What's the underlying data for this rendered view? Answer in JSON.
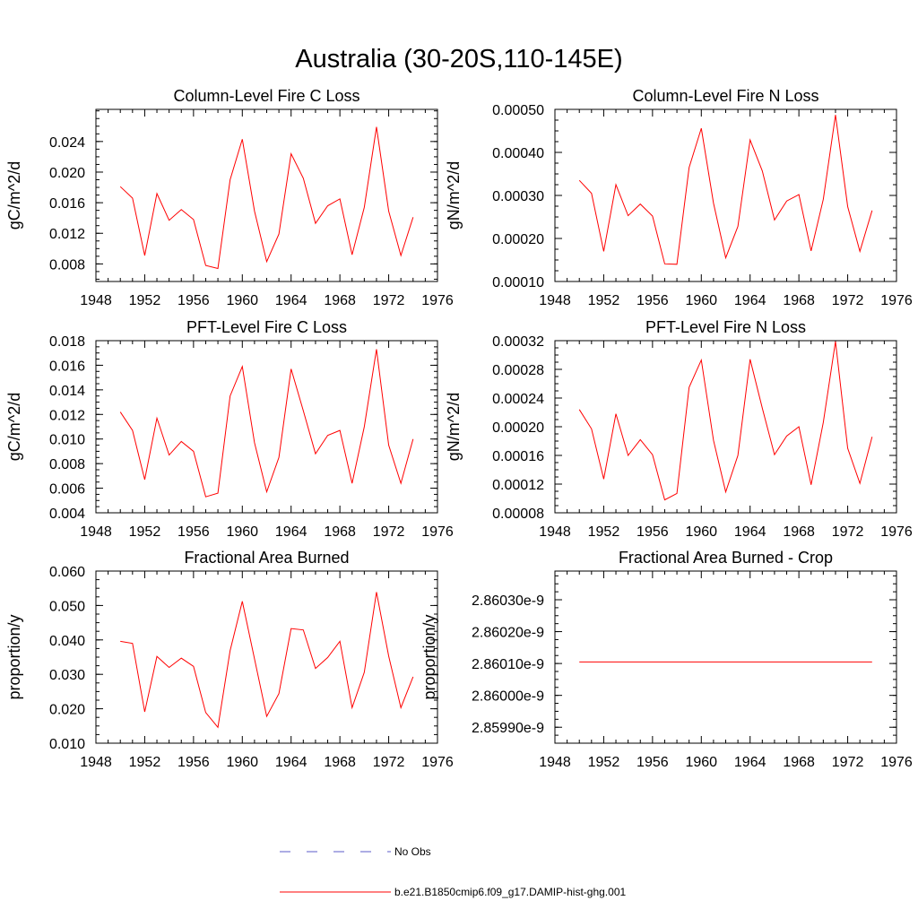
{
  "figure": {
    "title": "Australia (30-20S,110-145E)"
  },
  "legend": [
    {
      "label": "No Obs",
      "color": "#5b5bc8",
      "style": "dashed"
    },
    {
      "label": "b.e21.B1850cmip6.f09_g17.DAMIP-hist-ghg.001",
      "color": "#ff0000",
      "style": "solid"
    }
  ],
  "chart_data": [
    {
      "type": "line",
      "title": "Column-Level Fire C Loss",
      "ylabel": "gC/m^2/d",
      "xlim": [
        1948,
        1976
      ],
      "ylim": [
        0.0057,
        0.0282
      ],
      "xticks": [
        1948,
        1952,
        1956,
        1960,
        1964,
        1968,
        1972,
        1976
      ],
      "xtick_labels": [
        "1948",
        "1952",
        "1956",
        "1960",
        "1964",
        "1968",
        "1972",
        "1976"
      ],
      "yticks": [
        0.008,
        0.012,
        0.016,
        0.02,
        0.024
      ],
      "ytick_labels": [
        "0.008",
        "0.012",
        "0.016",
        "0.020",
        "0.024"
      ],
      "series": [
        {
          "color": "#ff0000",
          "x": [
            1950,
            1951,
            1952,
            1953,
            1954,
            1955,
            1956,
            1957,
            1958,
            1959,
            1960,
            1961,
            1962,
            1963,
            1964,
            1965,
            1966,
            1967,
            1968,
            1969,
            1970,
            1971,
            1972,
            1973,
            1974
          ],
          "values": [
            0.0181,
            0.0166,
            0.0091,
            0.0172,
            0.0137,
            0.0151,
            0.0138,
            0.0078,
            0.0074,
            0.019,
            0.0243,
            0.0149,
            0.0083,
            0.0119,
            0.0224,
            0.0192,
            0.0133,
            0.0156,
            0.0165,
            0.0092,
            0.0154,
            0.0259,
            0.0149,
            0.0091,
            0.0141
          ]
        }
      ]
    },
    {
      "type": "line",
      "title": "Column-Level Fire N Loss",
      "ylabel": "gN/m^2/d",
      "xlim": [
        1948,
        1976
      ],
      "ylim": [
        0.0001,
        0.0005
      ],
      "xticks": [
        1948,
        1952,
        1956,
        1960,
        1964,
        1968,
        1972,
        1976
      ],
      "xtick_labels": [
        "1948",
        "1952",
        "1956",
        "1960",
        "1964",
        "1968",
        "1972",
        "1976"
      ],
      "yticks": [
        0.0001,
        0.0002,
        0.0003,
        0.0004,
        0.0005
      ],
      "ytick_labels": [
        "0.00010",
        "0.00020",
        "0.00030",
        "0.00040",
        "0.00050"
      ],
      "series": [
        {
          "color": "#ff0000",
          "x": [
            1950,
            1951,
            1952,
            1953,
            1954,
            1955,
            1956,
            1957,
            1958,
            1959,
            1960,
            1961,
            1962,
            1963,
            1964,
            1965,
            1966,
            1967,
            1968,
            1969,
            1970,
            1971,
            1972,
            1973,
            1974
          ],
          "values": [
            0.000335,
            0.000305,
            0.00017,
            0.000325,
            0.000253,
            0.00028,
            0.000252,
            0.000141,
            0.00014,
            0.000365,
            0.000456,
            0.000282,
            0.000155,
            0.000228,
            0.000429,
            0.000357,
            0.000243,
            0.000287,
            0.000302,
            0.000171,
            0.000291,
            0.000487,
            0.000274,
            0.00017,
            0.000265
          ]
        }
      ]
    },
    {
      "type": "line",
      "title": "PFT-Level Fire C Loss",
      "ylabel": "gC/m^2/d",
      "xlim": [
        1948,
        1976
      ],
      "ylim": [
        0.004,
        0.018
      ],
      "xticks": [
        1948,
        1952,
        1956,
        1960,
        1964,
        1968,
        1972,
        1976
      ],
      "xtick_labels": [
        "1948",
        "1952",
        "1956",
        "1960",
        "1964",
        "1968",
        "1972",
        "1976"
      ],
      "yticks": [
        0.004,
        0.006,
        0.008,
        0.01,
        0.012,
        0.014,
        0.016,
        0.018
      ],
      "ytick_labels": [
        "0.004",
        "0.006",
        "0.008",
        "0.010",
        "0.012",
        "0.014",
        "0.016",
        "0.018"
      ],
      "series": [
        {
          "color": "#ff0000",
          "x": [
            1950,
            1951,
            1952,
            1953,
            1954,
            1955,
            1956,
            1957,
            1958,
            1959,
            1960,
            1961,
            1962,
            1963,
            1964,
            1965,
            1966,
            1967,
            1968,
            1969,
            1970,
            1971,
            1972,
            1973,
            1974
          ],
          "values": [
            0.0122,
            0.0107,
            0.0067,
            0.0117,
            0.0087,
            0.0098,
            0.009,
            0.0053,
            0.0056,
            0.0135,
            0.0159,
            0.0097,
            0.0057,
            0.0085,
            0.0157,
            0.0123,
            0.0088,
            0.0103,
            0.0107,
            0.0064,
            0.011,
            0.0173,
            0.0095,
            0.0064,
            0.01
          ]
        }
      ]
    },
    {
      "type": "line",
      "title": "PFT-Level Fire N Loss",
      "ylabel": "gN/m^2/d",
      "xlim": [
        1948,
        1976
      ],
      "ylim": [
        8e-05,
        0.00032
      ],
      "xticks": [
        1948,
        1952,
        1956,
        1960,
        1964,
        1968,
        1972,
        1976
      ],
      "xtick_labels": [
        "1948",
        "1952",
        "1956",
        "1960",
        "1964",
        "1968",
        "1972",
        "1976"
      ],
      "yticks": [
        8e-05,
        0.00012,
        0.00016,
        0.0002,
        0.00024,
        0.00028,
        0.00032
      ],
      "ytick_labels": [
        "0.00008",
        "0.00012",
        "0.00016",
        "0.00020",
        "0.00024",
        "0.00028",
        "0.00032"
      ],
      "series": [
        {
          "color": "#ff0000",
          "x": [
            1950,
            1951,
            1952,
            1953,
            1954,
            1955,
            1956,
            1957,
            1958,
            1959,
            1960,
            1961,
            1962,
            1963,
            1964,
            1965,
            1966,
            1967,
            1968,
            1969,
            1970,
            1971,
            1972,
            1973,
            1974
          ],
          "values": [
            0.000224,
            0.000197,
            0.000127,
            0.000218,
            0.00016,
            0.000182,
            0.000161,
            9.8e-05,
            0.000107,
            0.000255,
            0.000293,
            0.000181,
            0.000109,
            0.00016,
            0.000294,
            0.000226,
            0.000161,
            0.000187,
            0.0002,
            0.000119,
            0.000206,
            0.000319,
            0.00017,
            0.000121,
            0.000186
          ]
        }
      ]
    },
    {
      "type": "line",
      "title": "Fractional Area Burned",
      "ylabel": "proportion/y",
      "xlim": [
        1948,
        1976
      ],
      "ylim": [
        0.01,
        0.06
      ],
      "xticks": [
        1948,
        1952,
        1956,
        1960,
        1964,
        1968,
        1972,
        1976
      ],
      "xtick_labels": [
        "1948",
        "1952",
        "1956",
        "1960",
        "1964",
        "1968",
        "1972",
        "1976"
      ],
      "yticks": [
        0.01,
        0.02,
        0.03,
        0.04,
        0.05,
        0.06
      ],
      "ytick_labels": [
        "0.010",
        "0.020",
        "0.030",
        "0.040",
        "0.050",
        "0.060"
      ],
      "series": [
        {
          "color": "#ff0000",
          "x": [
            1950,
            1951,
            1952,
            1953,
            1954,
            1955,
            1956,
            1957,
            1958,
            1959,
            1960,
            1961,
            1962,
            1963,
            1964,
            1965,
            1966,
            1967,
            1968,
            1969,
            1970,
            1971,
            1972,
            1973,
            1974
          ],
          "values": [
            0.0396,
            0.039,
            0.0191,
            0.0352,
            0.032,
            0.0347,
            0.0323,
            0.0189,
            0.0146,
            0.0369,
            0.0512,
            0.0345,
            0.0178,
            0.0244,
            0.0433,
            0.0429,
            0.0317,
            0.0349,
            0.0396,
            0.0203,
            0.0306,
            0.0539,
            0.0353,
            0.0203,
            0.0293
          ]
        }
      ]
    },
    {
      "type": "line",
      "title": "Fractional Area Burned - Crop",
      "ylabel": "proportion/y",
      "xlim": [
        1948,
        1976
      ],
      "ylim": [
        2.85985e-09,
        2.86039e-09
      ],
      "xticks": [
        1948,
        1952,
        1956,
        1960,
        1964,
        1968,
        1972,
        1976
      ],
      "xtick_labels": [
        "1948",
        "1952",
        "1956",
        "1960",
        "1964",
        "1968",
        "1972",
        "1976"
      ],
      "yticks": [
        2.8599e-09,
        2.86e-09,
        2.8601e-09,
        2.8602e-09,
        2.8603e-09
      ],
      "ytick_labels": [
        "2.85990e-9",
        "2.86000e-9",
        "2.86010e-9",
        "2.86020e-9",
        "2.86030e-9"
      ],
      "series": [
        {
          "color": "#ff0000",
          "x": [
            1950,
            1974
          ],
          "values": [
            2.860105e-09,
            2.860105e-09
          ]
        }
      ]
    }
  ]
}
